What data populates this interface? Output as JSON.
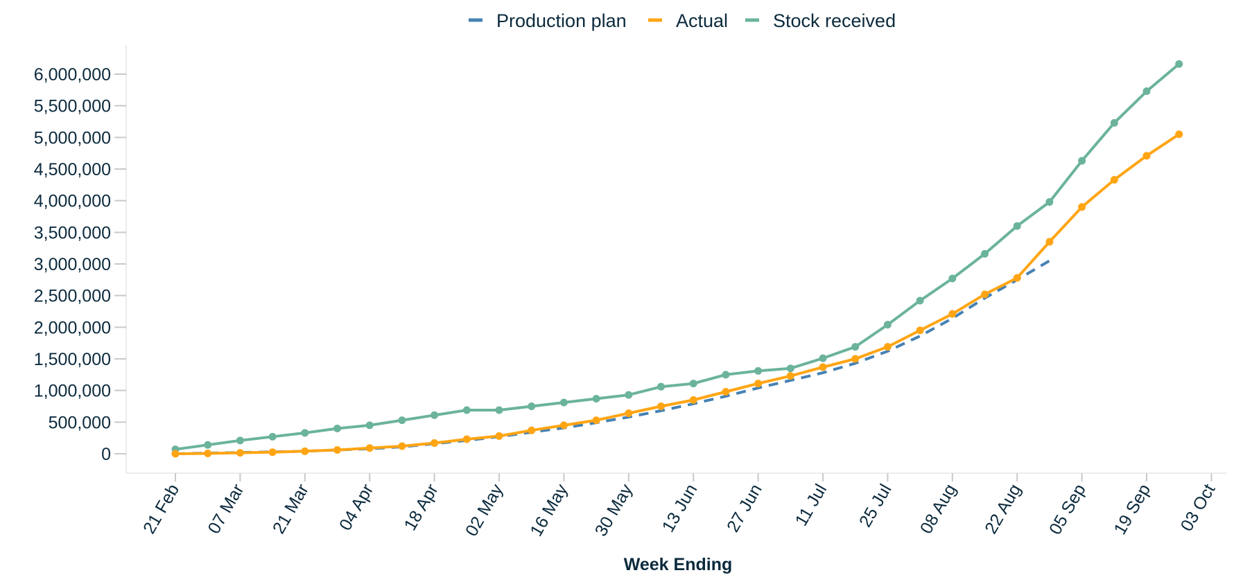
{
  "chart_data": {
    "type": "line",
    "xlabel": "Week Ending",
    "ylabel": "",
    "x_tick_labels": [
      "21 Feb",
      "07 Mar",
      "21 Mar",
      "04 Apr",
      "18 Apr",
      "02 May",
      "16 May",
      "30 May",
      "13 Jun",
      "27 Jun",
      "11 Jul",
      "25 Jul",
      "08 Aug",
      "22 Aug",
      "05 Sep",
      "19 Sep",
      "03 Oct"
    ],
    "y_tick_labels": [
      "0",
      "500,000",
      "1,000,000",
      "1,500,000",
      "2,000,000",
      "2,500,000",
      "3,000,000",
      "3,500,000",
      "4,000,000",
      "4,500,000",
      "5,000,000",
      "5,500,000",
      "6,000,000"
    ],
    "ylim": [
      0,
      6000000
    ],
    "grid": false,
    "legend_position": "top-center",
    "x": [
      "21 Feb",
      "28 Feb",
      "07 Mar",
      "14 Mar",
      "21 Mar",
      "28 Mar",
      "04 Apr",
      "11 Apr",
      "18 Apr",
      "25 Apr",
      "02 May",
      "09 May",
      "16 May",
      "23 May",
      "30 May",
      "06 Jun",
      "13 Jun",
      "20 Jun",
      "27 Jun",
      "04 Jul",
      "11 Jul",
      "18 Jul",
      "25 Jul",
      "01 Aug",
      "08 Aug",
      "15 Aug",
      "22 Aug",
      "29 Aug",
      "05 Sep",
      "12 Sep",
      "19 Sep",
      "26 Sep"
    ],
    "series": [
      {
        "name": "Production plan",
        "color": "#4682b4",
        "dashed": true,
        "markers": false,
        "values": [
          0,
          10000,
          20000,
          30000,
          40000,
          60000,
          80000,
          110000,
          160000,
          210000,
          270000,
          340000,
          410000,
          490000,
          580000,
          680000,
          790000,
          910000,
          1040000,
          1160000,
          1280000,
          1430000,
          1620000,
          1860000,
          2140000,
          2460000,
          2750000,
          3050000,
          null,
          null,
          null,
          null
        ]
      },
      {
        "name": "Actual",
        "color": "#ffa514",
        "dashed": false,
        "markers": true,
        "values": [
          0,
          5000,
          15000,
          25000,
          40000,
          60000,
          90000,
          120000,
          170000,
          230000,
          280000,
          370000,
          450000,
          530000,
          640000,
          750000,
          850000,
          980000,
          1110000,
          1230000,
          1370000,
          1500000,
          1690000,
          1950000,
          2210000,
          2520000,
          2780000,
          3350000,
          3900000,
          4330000,
          4710000,
          5050000
        ]
      },
      {
        "name": "Stock received",
        "color": "#6bb39c",
        "dashed": false,
        "markers": true,
        "values": [
          70000,
          140000,
          210000,
          270000,
          330000,
          400000,
          450000,
          530000,
          610000,
          690000,
          690000,
          750000,
          810000,
          870000,
          930000,
          1060000,
          1110000,
          1250000,
          1310000,
          1350000,
          1510000,
          1690000,
          2040000,
          2420000,
          2770000,
          3160000,
          3600000,
          3980000,
          4630000,
          5230000,
          5730000,
          6160000
        ]
      }
    ]
  }
}
